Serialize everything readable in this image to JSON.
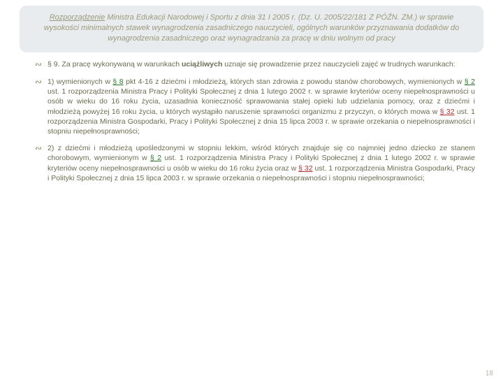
{
  "header": {
    "text": "Rozporządzenie Ministra Edukacji Narodowej i Sportu z dnia 31 I 2005 r. (Dz. U. 2005/22/181 Z PÓŹN. ZM.) w sprawie wysokości minimalnych stawek wynagrodzenia zasadniczego nauczycieli, ogólnych warunków przyznawania dodatków do wynagrodzenia zasadniczego oraz wynagradzania za pracę w dniu wolnym od pracy",
    "linkText": "Rozporządzenie",
    "fontColor": "#9a9a7a",
    "background": "#e8ecef",
    "fontSize": 11
  },
  "items": [
    {
      "prefix": "§ 9. Za pracę wykonywaną w warunkach ",
      "bold": "uciążliwych",
      "suffix": " uznaje się prowadzenie przez nauczycieli zajęć w trudnych warunkach:",
      "links": []
    },
    {
      "full": "1) wymienionych w § 8 pkt 4-16 z dziećmi i młodzieżą, których stan zdrowia z powodu stanów chorobowych, wymienionych w § 2 ust. 1 rozporządzenia Ministra Pracy i Polityki Społecznej z dnia 1 lutego 2002 r. w sprawie kryteriów oceny niepełnosprawności u osób w wieku do 16 roku życia, uzasadnia konieczność sprawowania stałej opieki lub udzielania pomocy, oraz z dziećmi i młodzieżą powyżej 16 roku życia, u których wystąpiło naruszenie sprawności organizmu z przyczyn, o których mowa w § 32 ust. 1 rozporządzenia Ministra Gospodarki, Pracy i Polityki Społecznej z dnia 15 lipca 2003 r. w sprawie orzekania o niepełnosprawności i stopniu niepełnosprawności;",
      "links": [
        {
          "text": "§ 8",
          "type": "green"
        },
        {
          "text": "§ 2",
          "type": "green"
        },
        {
          "text": "§ 32",
          "type": "red"
        }
      ]
    },
    {
      "full": "2) z dziećmi i młodzieżą upośledzonymi w stopniu lekkim, wśród których znajduje się co najmniej jedno dziecko ze stanem chorobowym, wymienionym w § 2 ust. 1 rozporządzenia Ministra Pracy i Polityki Społecznej z dnia 1 lutego 2002 r. w sprawie kryteriów oceny niepełnosprawności u osób w wieku do 16 roku życia oraz w § 32 ust. 1 rozporządzenia Ministra Gospodarki, Pracy i Polityki Społecznej z dnia 15 lipca 2003 r. w sprawie orzekania o niepełnosprawności i stopniu niepełnosprawności;",
      "links": [
        {
          "text": "§ 2",
          "type": "green"
        },
        {
          "text": "§ 32",
          "type": "red"
        }
      ]
    }
  ],
  "pageNumber": "18",
  "colors": {
    "textColor": "#6c6c52",
    "greenLink": "#2a7a2a",
    "redLink": "#b03030",
    "pageNumColor": "#b8b8a0"
  },
  "bulletGlyph": "∾"
}
